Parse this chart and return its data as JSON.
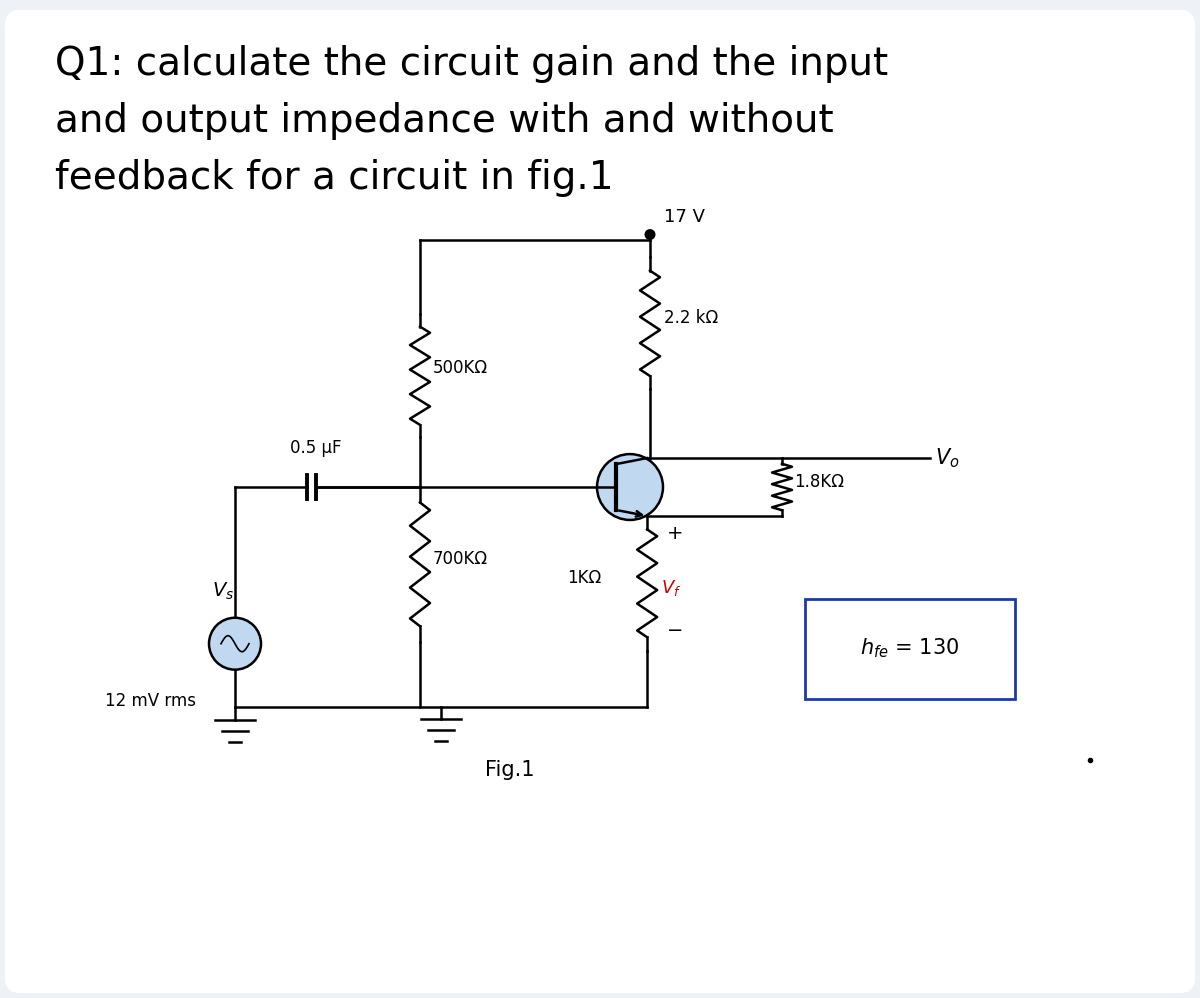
{
  "background_color": "#eef2f7",
  "card_color": "#ffffff",
  "title_lines": [
    "Q1: calculate the circuit gain and the input",
    "and output impedance with and without",
    "feedback for a circuit in fig.1"
  ],
  "title_fontsize": 28,
  "fig_label": "Fig.1",
  "supply_voltage": "17 V",
  "r1_label": "2.2 kΩ",
  "r2_label": "500KΩ",
  "r3_label": "1.8KΩ",
  "r4_label": "700KΩ",
  "r5_label": "1KΩ",
  "cap_label": "0.5 μF",
  "hfe_label": "$h_{fe}$ = 130",
  "vs_label": "$V_s$",
  "vf_label": "$V_f$",
  "vo_label": "$V_o$",
  "source_label": "12 mV rms",
  "vf_color": "#cc0000",
  "hfe_box_color": "#1a3aaa",
  "wire_color": "#000000",
  "transistor_fill": "#c0d8f0"
}
